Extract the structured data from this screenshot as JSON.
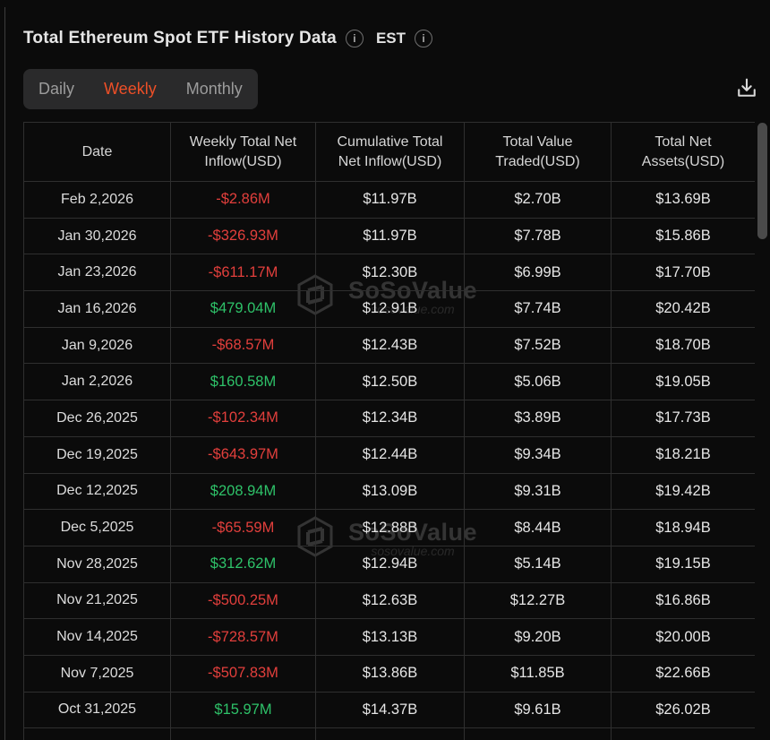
{
  "header": {
    "title": "Total Ethereum Spot ETF History Data",
    "est_label": "EST"
  },
  "tabs": [
    {
      "label": "Daily",
      "active": false
    },
    {
      "label": "Weekly",
      "active": true
    },
    {
      "label": "Monthly",
      "active": false
    }
  ],
  "icons": {
    "title_info": "info-icon",
    "est_info": "info-icon",
    "download": "download-icon"
  },
  "table": {
    "columns": [
      "Date",
      "Weekly Total Net Inflow(USD)",
      "Cumulative Total Net Inflow(USD)",
      "Total Value Traded(USD)",
      "Total Net Assets(USD)"
    ],
    "rows": [
      {
        "date": "Feb 2,2026",
        "inflow": "-$2.86M",
        "cumulative": "$11.97B",
        "traded": "$2.70B",
        "assets": "$13.69B"
      },
      {
        "date": "Jan 30,2026",
        "inflow": "-$326.93M",
        "cumulative": "$11.97B",
        "traded": "$7.78B",
        "assets": "$15.86B"
      },
      {
        "date": "Jan 23,2026",
        "inflow": "-$611.17M",
        "cumulative": "$12.30B",
        "traded": "$6.99B",
        "assets": "$17.70B"
      },
      {
        "date": "Jan 16,2026",
        "inflow": "$479.04M",
        "cumulative": "$12.91B",
        "traded": "$7.74B",
        "assets": "$20.42B"
      },
      {
        "date": "Jan 9,2026",
        "inflow": "-$68.57M",
        "cumulative": "$12.43B",
        "traded": "$7.52B",
        "assets": "$18.70B"
      },
      {
        "date": "Jan 2,2026",
        "inflow": "$160.58M",
        "cumulative": "$12.50B",
        "traded": "$5.06B",
        "assets": "$19.05B"
      },
      {
        "date": "Dec 26,2025",
        "inflow": "-$102.34M",
        "cumulative": "$12.34B",
        "traded": "$3.89B",
        "assets": "$17.73B"
      },
      {
        "date": "Dec 19,2025",
        "inflow": "-$643.97M",
        "cumulative": "$12.44B",
        "traded": "$9.34B",
        "assets": "$18.21B"
      },
      {
        "date": "Dec 12,2025",
        "inflow": "$208.94M",
        "cumulative": "$13.09B",
        "traded": "$9.31B",
        "assets": "$19.42B"
      },
      {
        "date": "Dec 5,2025",
        "inflow": "-$65.59M",
        "cumulative": "$12.88B",
        "traded": "$8.44B",
        "assets": "$18.94B"
      },
      {
        "date": "Nov 28,2025",
        "inflow": "$312.62M",
        "cumulative": "$12.94B",
        "traded": "$5.14B",
        "assets": "$19.15B"
      },
      {
        "date": "Nov 21,2025",
        "inflow": "-$500.25M",
        "cumulative": "$12.63B",
        "traded": "$12.27B",
        "assets": "$16.86B"
      },
      {
        "date": "Nov 14,2025",
        "inflow": "-$728.57M",
        "cumulative": "$13.13B",
        "traded": "$9.20B",
        "assets": "$20.00B"
      },
      {
        "date": "Nov 7,2025",
        "inflow": "-$507.83M",
        "cumulative": "$13.86B",
        "traded": "$11.85B",
        "assets": "$22.66B"
      },
      {
        "date": "Oct 31,2025",
        "inflow": "$15.97M",
        "cumulative": "$14.37B",
        "traded": "$9.61B",
        "assets": "$26.02B"
      }
    ]
  },
  "watermark": {
    "brand": "SoSoValue",
    "domain": "sosovalue.com"
  },
  "colors": {
    "accent": "#ed4f27",
    "negative": "#e23f3c",
    "positive": "#2ec269"
  }
}
